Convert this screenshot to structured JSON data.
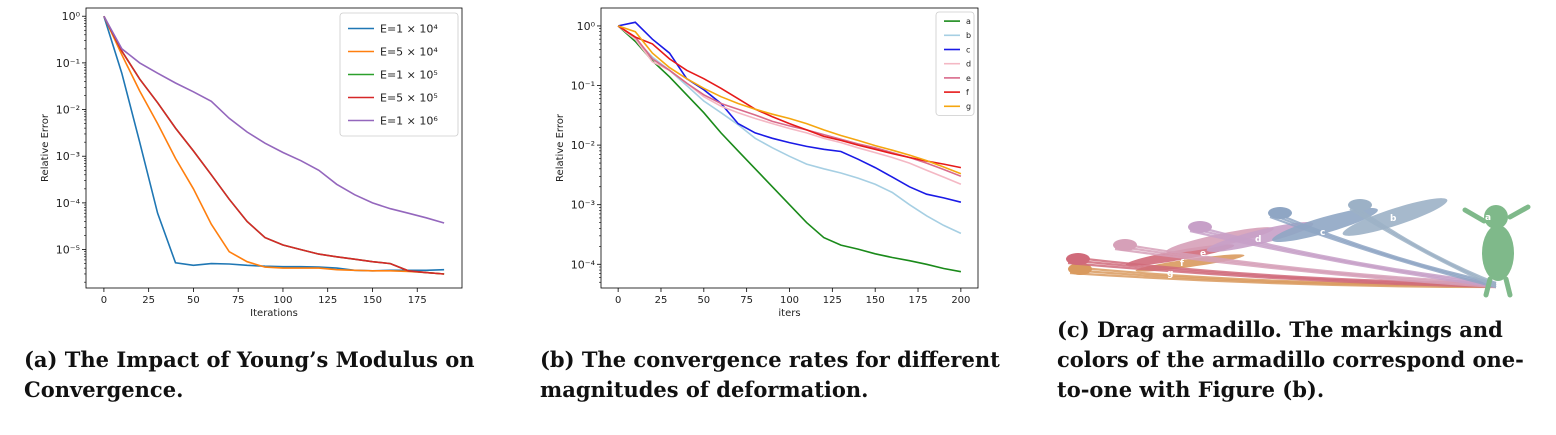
{
  "chart_data": [
    {
      "type": "line",
      "xlabel": "Iterations",
      "ylabel": "Relative Error",
      "yscale": "log",
      "xlim": [
        -10,
        200
      ],
      "ylim": [
        1.5e-06,
        1.5
      ],
      "xticks": [
        0,
        25,
        50,
        75,
        100,
        125,
        150,
        175
      ],
      "ytick_exponents": [
        0,
        -1,
        -2,
        -3,
        -4,
        -5
      ],
      "legend_position": "top-right",
      "series": [
        {
          "name": "E=1 × 10⁴",
          "color": "#1f77b4",
          "x": [
            0,
            10,
            20,
            30,
            40,
            50,
            60,
            70,
            80,
            90,
            100,
            110,
            120,
            130,
            140,
            150,
            160,
            170,
            180,
            190
          ],
          "y": [
            1.0,
            0.06,
            0.002,
            6e-05,
            5.2e-06,
            4.6e-06,
            5e-06,
            4.9e-06,
            4.6e-06,
            4.4e-06,
            4.3e-06,
            4.3e-06,
            4.2e-06,
            4e-06,
            3.6e-06,
            3.5e-06,
            3.6e-06,
            3.6e-06,
            3.6e-06,
            3.7e-06
          ]
        },
        {
          "name": "E=5 × 10⁴",
          "color": "#ff7f0e",
          "x": [
            0,
            10,
            20,
            30,
            40,
            50,
            60,
            70,
            80,
            90,
            100,
            110,
            120,
            130,
            140,
            150,
            160,
            170,
            180,
            190
          ],
          "y": [
            1.0,
            0.15,
            0.025,
            0.005,
            0.0009,
            0.0002,
            3.5e-05,
            9e-06,
            5.5e-06,
            4.2e-06,
            4e-06,
            4e-06,
            4e-06,
            3.7e-06,
            3.6e-06,
            3.5e-06,
            3.5e-06,
            3.4e-06,
            3.2e-06,
            3e-06
          ]
        },
        {
          "name": "E=1 × 10⁵",
          "color": "#2ca02c",
          "x": [
            0,
            10,
            20,
            30,
            40,
            50,
            60,
            70,
            80,
            90,
            100,
            110,
            120,
            130,
            140,
            150,
            160,
            170,
            180,
            190
          ],
          "y": [
            1.0,
            0.18,
            0.045,
            0.014,
            0.004,
            0.0013,
            0.0004,
            0.00012,
            4e-05,
            1.8e-05,
            1.25e-05,
            1e-05,
            8e-06,
            7e-06,
            6.2e-06,
            5.5e-06,
            5e-06,
            3.5e-06,
            3.2e-06,
            3e-06
          ]
        },
        {
          "name": "E=5 × 10⁵",
          "color": "#d62728",
          "x": [
            0,
            10,
            20,
            30,
            40,
            50,
            60,
            70,
            80,
            90,
            100,
            110,
            120,
            130,
            140,
            150,
            160,
            170,
            180,
            190
          ],
          "y": [
            1.0,
            0.18,
            0.045,
            0.014,
            0.004,
            0.0013,
            0.0004,
            0.00012,
            4e-05,
            1.8e-05,
            1.25e-05,
            1e-05,
            8e-06,
            7e-06,
            6.2e-06,
            5.5e-06,
            5e-06,
            3.5e-06,
            3.2e-06,
            3e-06
          ]
        },
        {
          "name": "E=1 × 10⁶",
          "color": "#9467bd",
          "x": [
            0,
            10,
            20,
            30,
            40,
            50,
            60,
            70,
            80,
            90,
            100,
            110,
            120,
            130,
            140,
            150,
            160,
            170,
            180,
            190
          ],
          "y": [
            1.0,
            0.2,
            0.1,
            0.06,
            0.037,
            0.024,
            0.015,
            0.0065,
            0.0033,
            0.0019,
            0.0012,
            0.0008,
            0.0005,
            0.00025,
            0.00015,
            0.0001,
            7.5e-05,
            6e-05,
            4.8e-05,
            3.7e-05
          ]
        }
      ]
    },
    {
      "type": "line",
      "xlabel": "iters",
      "ylabel": "Relative Error",
      "yscale": "log",
      "xlim": [
        -10,
        210
      ],
      "ylim": [
        4e-05,
        2
      ],
      "xticks": [
        0,
        25,
        50,
        75,
        100,
        125,
        150,
        175,
        200
      ],
      "ytick_exponents": [
        0,
        -1,
        -2,
        -3,
        -4
      ],
      "legend_position": "top-right",
      "series": [
        {
          "name": "a",
          "color": "#1a8a1a",
          "x": [
            0,
            10,
            20,
            30,
            40,
            50,
            60,
            70,
            80,
            90,
            100,
            110,
            120,
            130,
            140,
            150,
            160,
            170,
            180,
            190,
            200
          ],
          "y": [
            1.0,
            0.55,
            0.26,
            0.14,
            0.07,
            0.035,
            0.016,
            0.008,
            0.004,
            0.002,
            0.001,
            0.0005,
            0.00028,
            0.00021,
            0.00018,
            0.00015,
            0.00013,
            0.000115,
            0.0001,
            8.5e-05,
            7.5e-05
          ]
        },
        {
          "name": "b",
          "color": "#a6cfe3",
          "x": [
            0,
            10,
            20,
            30,
            40,
            50,
            60,
            70,
            80,
            90,
            100,
            110,
            120,
            130,
            140,
            150,
            160,
            170,
            180,
            190,
            200
          ],
          "y": [
            1.0,
            0.6,
            0.3,
            0.18,
            0.1,
            0.055,
            0.035,
            0.022,
            0.013,
            0.009,
            0.0065,
            0.0048,
            0.004,
            0.0034,
            0.0028,
            0.0022,
            0.0016,
            0.001,
            0.00065,
            0.00045,
            0.00033
          ]
        },
        {
          "name": "c",
          "color": "#1a1ae6",
          "x": [
            0,
            10,
            20,
            30,
            40,
            50,
            60,
            70,
            80,
            90,
            100,
            110,
            120,
            130,
            140,
            150,
            160,
            170,
            180,
            190,
            200
          ],
          "y": [
            1.0,
            1.15,
            0.6,
            0.35,
            0.13,
            0.085,
            0.05,
            0.023,
            0.016,
            0.013,
            0.011,
            0.0095,
            0.0085,
            0.0078,
            0.0058,
            0.0042,
            0.0029,
            0.002,
            0.0015,
            0.0013,
            0.0011
          ]
        },
        {
          "name": "d",
          "color": "#f4b8c4",
          "x": [
            0,
            10,
            20,
            30,
            40,
            50,
            60,
            70,
            80,
            90,
            100,
            110,
            120,
            130,
            140,
            150,
            160,
            170,
            180,
            190,
            200
          ],
          "y": [
            1.0,
            0.6,
            0.25,
            0.18,
            0.11,
            0.065,
            0.045,
            0.035,
            0.028,
            0.023,
            0.019,
            0.016,
            0.013,
            0.011,
            0.009,
            0.0075,
            0.0062,
            0.005,
            0.0038,
            0.0029,
            0.0022
          ]
        },
        {
          "name": "e",
          "color": "#d96a8a",
          "x": [
            0,
            10,
            20,
            30,
            40,
            50,
            60,
            70,
            80,
            90,
            100,
            110,
            120,
            130,
            140,
            150,
            160,
            170,
            180,
            190,
            200
          ],
          "y": [
            1.0,
            0.65,
            0.28,
            0.18,
            0.11,
            0.07,
            0.05,
            0.04,
            0.032,
            0.025,
            0.021,
            0.018,
            0.015,
            0.0125,
            0.0105,
            0.009,
            0.0075,
            0.0062,
            0.005,
            0.0039,
            0.003
          ]
        },
        {
          "name": "f",
          "color": "#e61a1a",
          "x": [
            0,
            10,
            20,
            30,
            40,
            50,
            60,
            70,
            80,
            90,
            100,
            110,
            120,
            130,
            140,
            150,
            160,
            170,
            180,
            190,
            200
          ],
          "y": [
            1.0,
            0.65,
            0.5,
            0.28,
            0.18,
            0.13,
            0.09,
            0.06,
            0.04,
            0.03,
            0.023,
            0.018,
            0.014,
            0.012,
            0.01,
            0.0085,
            0.0072,
            0.0062,
            0.0054,
            0.0048,
            0.0042
          ]
        },
        {
          "name": "g",
          "color": "#f5a60f",
          "x": [
            0,
            10,
            20,
            30,
            40,
            50,
            60,
            70,
            80,
            90,
            100,
            110,
            120,
            130,
            140,
            150,
            160,
            170,
            180,
            190,
            200
          ],
          "y": [
            1.0,
            0.8,
            0.35,
            0.2,
            0.13,
            0.09,
            0.065,
            0.05,
            0.04,
            0.033,
            0.028,
            0.023,
            0.018,
            0.0145,
            0.012,
            0.0098,
            0.0082,
            0.0068,
            0.0055,
            0.0043,
            0.0033
          ]
        }
      ]
    }
  ],
  "figure_c": {
    "markers": [
      "a",
      "b",
      "c",
      "d",
      "e",
      "f",
      "g"
    ],
    "colors": [
      "#7fb98a",
      "#9cb1c6",
      "#8fa6c4",
      "#c7a0c8",
      "#d6a0b8",
      "#d06a7a",
      "#d99a5e"
    ]
  },
  "captions": {
    "a": "(a) The Impact of Young’s Modulus on Convergence.",
    "b": "(b) The convergence rates for different magnitudes of deformation.",
    "c": "(c) Drag armadillo. The markings and colors of the armadillo correspond one-to-one with Figure (b)."
  }
}
